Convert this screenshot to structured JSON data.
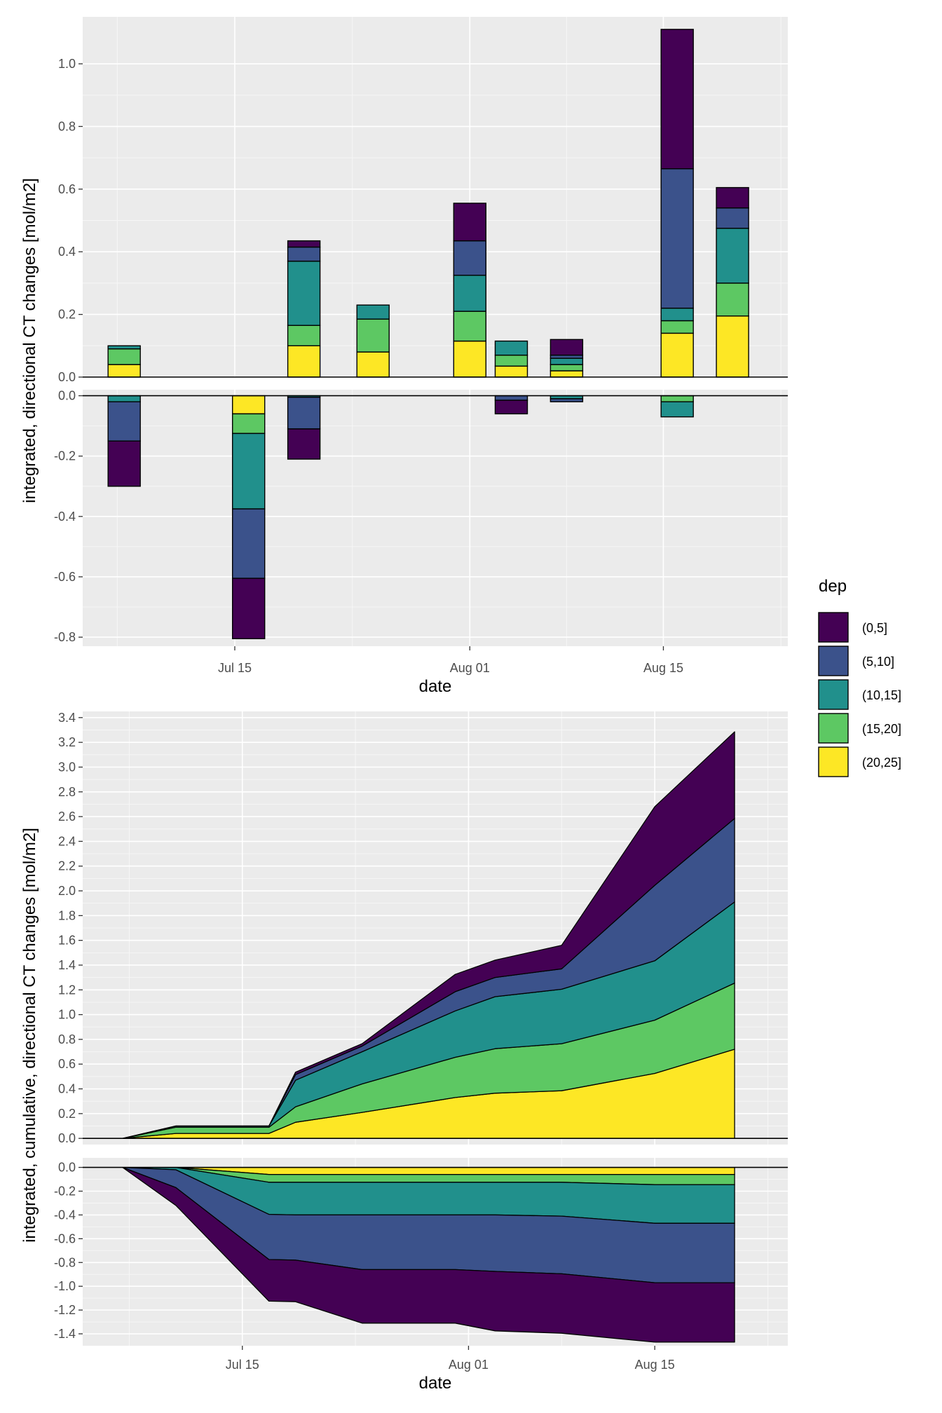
{
  "legend": {
    "title": "dep",
    "entries": [
      {
        "label": "(0,5]",
        "color": "#440154"
      },
      {
        "label": "(5,10]",
        "color": "#3B528B"
      },
      {
        "label": "(10,15]",
        "color": "#21908C"
      },
      {
        "label": "(15,20]",
        "color": "#5DC863"
      },
      {
        "label": "(20,25]",
        "color": "#FDE725"
      }
    ]
  },
  "chart_data": [
    {
      "type": "bar",
      "stacked": true,
      "title": "",
      "xlabel": "date",
      "ylabel": "integrated, directional CT changes [mol/m2]",
      "x_ticks": [
        "Jul 15",
        "Aug 01",
        "Aug 15"
      ],
      "x_tick_dates": [
        "2023-07-15",
        "2023-08-01",
        "2023-08-15"
      ],
      "xlim": [
        "2023-07-04",
        "2023-08-24"
      ],
      "categories": [
        "2023-07-07",
        "2023-07-16",
        "2023-07-20",
        "2023-07-25",
        "2023-08-01",
        "2023-08-04",
        "2023-08-08",
        "2023-08-16",
        "2023-08-20"
      ],
      "panels": [
        {
          "name": "positive",
          "ylim": [
            0,
            1.15
          ],
          "y_ticks": [
            "0.0",
            "0.2",
            "0.4",
            "0.6",
            "0.8",
            "1.0"
          ],
          "series": [
            {
              "name": "(20,25]",
              "values": [
                0.04,
                0,
                0.1,
                0.08,
                0.115,
                0.035,
                0.02,
                0.14,
                0.195
              ]
            },
            {
              "name": "(15,20]",
              "values": [
                0.05,
                0,
                0.065,
                0.105,
                0.095,
                0.035,
                0.02,
                0.04,
                0.105
              ]
            },
            {
              "name": "(10,15]",
              "values": [
                0.01,
                0,
                0.205,
                0.045,
                0.115,
                0.045,
                0.02,
                0.04,
                0.175
              ]
            },
            {
              "name": "(5,10]",
              "values": [
                0,
                0,
                0.045,
                0,
                0.11,
                0,
                0.01,
                0.445,
                0.065
              ]
            },
            {
              "name": "(0,5]",
              "values": [
                0,
                0,
                0.02,
                0,
                0.12,
                0,
                0.05,
                0.445,
                0.065
              ]
            }
          ]
        },
        {
          "name": "negative",
          "ylim": [
            -0.83,
            0.02
          ],
          "y_ticks": [
            "0.0",
            "-0.2",
            "-0.4",
            "-0.6",
            "-0.8"
          ],
          "series": [
            {
              "name": "(20,25]",
              "values": [
                0,
                -0.06,
                0,
                0,
                0,
                0,
                0,
                0,
                0
              ]
            },
            {
              "name": "(15,20]",
              "values": [
                0,
                -0.065,
                0,
                0,
                0,
                0,
                0,
                -0.02,
                0
              ]
            },
            {
              "name": "(10,15]",
              "values": [
                -0.02,
                -0.25,
                -0.005,
                0,
                0,
                0,
                -0.01,
                -0.05,
                0
              ]
            },
            {
              "name": "(5,10]",
              "values": [
                -0.13,
                -0.23,
                -0.105,
                0,
                0,
                -0.015,
                -0.01,
                0,
                0
              ]
            },
            {
              "name": "(0,5]",
              "values": [
                -0.15,
                -0.2,
                -0.1,
                0,
                0,
                -0.045,
                0,
                0,
                0
              ]
            }
          ]
        }
      ]
    },
    {
      "type": "area",
      "stacked": true,
      "title": "",
      "xlabel": "date",
      "ylabel": "integrated, cumulative, directional CT changes [mol/m2]",
      "x_ticks": [
        "Jul 15",
        "Aug 01",
        "Aug 15"
      ],
      "x_tick_dates": [
        "2023-07-15",
        "2023-08-01",
        "2023-08-15"
      ],
      "xlim": [
        "2023-07-03",
        "2023-08-25"
      ],
      "x": [
        "2023-07-06",
        "2023-07-10",
        "2023-07-17",
        "2023-07-19",
        "2023-07-24",
        "2023-07-31",
        "2023-08-03",
        "2023-08-08",
        "2023-08-15",
        "2023-08-21"
      ],
      "panels": [
        {
          "name": "positive",
          "ylim": [
            -0.05,
            3.45
          ],
          "y_ticks": [
            "0.0",
            "0.2",
            "0.4",
            "0.6",
            "0.8",
            "1.0",
            "1.2",
            "1.4",
            "1.6",
            "1.8",
            "2.0",
            "2.2",
            "2.4",
            "2.6",
            "2.8",
            "3.0",
            "3.2",
            "3.4"
          ],
          "series": [
            {
              "name": "(20,25]",
              "values": [
                0,
                0.04,
                0.04,
                0.13,
                0.21,
                0.33,
                0.365,
                0.385,
                0.525,
                0.72
              ]
            },
            {
              "name": "(15,20]",
              "values": [
                0,
                0.05,
                0.05,
                0.125,
                0.23,
                0.325,
                0.36,
                0.38,
                0.43,
                0.535
              ]
            },
            {
              "name": "(10,15]",
              "values": [
                0,
                0.01,
                0.01,
                0.215,
                0.26,
                0.375,
                0.42,
                0.44,
                0.48,
                0.655
              ]
            },
            {
              "name": "(5,10]",
              "values": [
                0,
                0,
                0,
                0.045,
                0.045,
                0.155,
                0.155,
                0.165,
                0.61,
                0.675
              ]
            },
            {
              "name": "(0,5]",
              "values": [
                0,
                0,
                0,
                0.02,
                0.02,
                0.14,
                0.14,
                0.19,
                0.635,
                0.7
              ]
            }
          ]
        },
        {
          "name": "negative",
          "ylim": [
            -1.5,
            0.08
          ],
          "y_ticks": [
            "0.0",
            "-0.2",
            "-0.4",
            "-0.6",
            "-0.8",
            "-1.0",
            "-1.2",
            "-1.4"
          ],
          "series": [
            {
              "name": "(20,25]",
              "values": [
                0,
                0,
                -0.06,
                -0.06,
                -0.06,
                -0.06,
                -0.06,
                -0.06,
                -0.06,
                -0.06
              ]
            },
            {
              "name": "(15,20]",
              "values": [
                0,
                0,
                -0.065,
                -0.065,
                -0.065,
                -0.065,
                -0.065,
                -0.065,
                -0.085,
                -0.085
              ]
            },
            {
              "name": "(10,15]",
              "values": [
                0,
                -0.02,
                -0.27,
                -0.275,
                -0.275,
                -0.275,
                -0.275,
                -0.285,
                -0.325,
                -0.325
              ]
            },
            {
              "name": "(5,10]",
              "values": [
                0,
                -0.15,
                -0.38,
                -0.38,
                -0.46,
                -0.46,
                -0.475,
                -0.485,
                -0.5,
                -0.5
              ]
            },
            {
              "name": "(0,5]",
              "values": [
                0,
                -0.15,
                -0.35,
                -0.35,
                -0.45,
                -0.45,
                -0.5,
                -0.5,
                -0.5,
                -0.5
              ]
            }
          ]
        }
      ]
    }
  ]
}
